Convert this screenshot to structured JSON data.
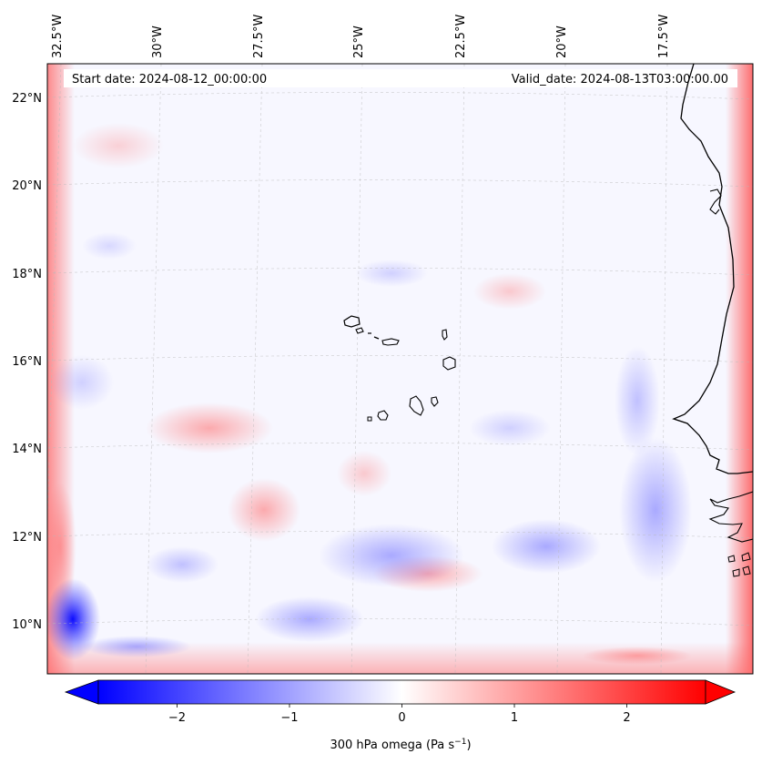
{
  "annotations": {
    "start_date": "Start date: 2024-08-12_00:00:00",
    "valid_date": "Valid_date: 2024-08-13T03:00:00.00"
  },
  "longitude_ticks": [
    "32.5°W",
    "30°W",
    "27.5°W",
    "25°W",
    "22.5°W",
    "20°W",
    "17.5°W"
  ],
  "latitude_ticks": [
    "22°N",
    "20°N",
    "18°N",
    "16°N",
    "14°N",
    "12°N",
    "10°N"
  ],
  "colorbar": {
    "label": "300 hPa omega (Pa s",
    "label_superscript": "−1",
    "label_suffix": ")",
    "ticks": [
      "−2",
      "−1",
      "0",
      "1",
      "2"
    ],
    "tick_values": [
      -2,
      -1,
      0,
      1,
      2
    ],
    "range": [
      -2.7,
      2.7
    ],
    "extend": "both",
    "colors": {
      "min": "#0000ff",
      "mid": "#ffffff",
      "max": "#ff0000"
    }
  },
  "map": {
    "lon_range": [
      -33,
      -15
    ],
    "lat_range": [
      8.8,
      22.8
    ],
    "gridlines": true,
    "coastline_color": "#000000"
  }
}
